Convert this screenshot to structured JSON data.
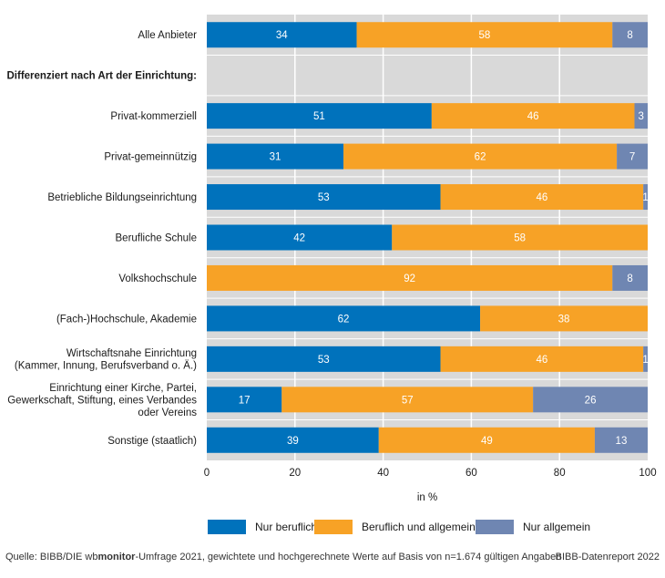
{
  "chart_data": {
    "type": "bar",
    "stacked": true,
    "orientation": "horizontal",
    "categories": [
      "Alle Anbieter",
      "Differenziert nach Art der Einrichtung:",
      "Privat-kommerziell",
      "Privat-gemeinnützig",
      "Betriebliche Bildungseinrichtung",
      "Berufliche Schule",
      "Volkshochschule",
      "(Fach-)Hochschule, Akademie",
      "Wirtschaftsnahe Einrichtung\n(Kammer, Innung, Berufsverband o. Ä.)",
      "Einrichtung einer Kirche, Partei,\nGewerkschaft, Stiftung, eines Verbandes\noder Vereins",
      "Sonstige (staatlich)"
    ],
    "bold_categories": [
      1
    ],
    "series": [
      {
        "name": "Nur beruflich",
        "color": "#0072bc",
        "values": [
          34,
          null,
          51,
          31,
          53,
          42,
          0,
          62,
          53,
          17,
          39
        ]
      },
      {
        "name": "Beruflich und allgemein",
        "color": "#f7a226",
        "values": [
          58,
          null,
          46,
          62,
          46,
          58,
          92,
          38,
          46,
          57,
          49
        ]
      },
      {
        "name": "Nur allgemein",
        "color": "#6f86b2",
        "values": [
          8,
          null,
          3,
          7,
          1,
          0,
          8,
          0,
          1,
          26,
          13
        ]
      }
    ],
    "xlabel": "in %",
    "xlim": [
      0,
      100
    ],
    "xticks": [
      0,
      20,
      40,
      60,
      80,
      100
    ],
    "grid": true,
    "legend_position": "bottom"
  },
  "footer": {
    "source_prefix": "Quelle: BIBB/DIE wb",
    "source_bold": "monitor",
    "source_suffix": "-Umfrage 2021, gewichtete und hochgerechnete Werte auf Basis von n=1.674 gültigen Angaben",
    "credit": "BIBB-Datenreport 2022"
  }
}
